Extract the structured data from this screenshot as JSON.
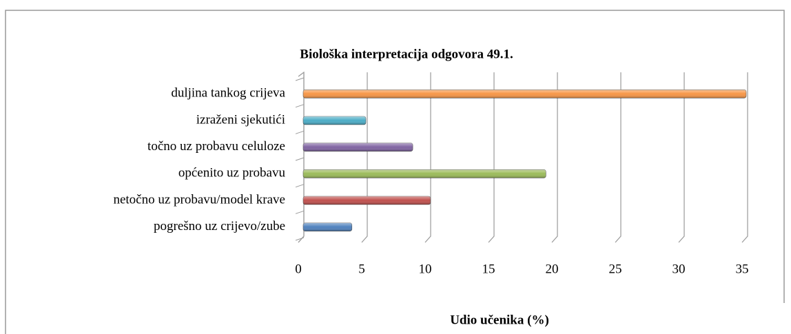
{
  "chart_data": {
    "type": "barh",
    "title": "Biološka interpretacija odgovora 49.1.",
    "x_label": "Udio učenika (%)",
    "categories": [
      "duljina tankog crijeva",
      "izraženi sjekutići",
      "točno uz probavu celuloze",
      "općenito uz probavu",
      "netočno uz probavu/model krave",
      "pogrešno uz crijevo/zube"
    ],
    "values": [
      35,
      5,
      8.7,
      19.2,
      10.1,
      3.9
    ],
    "colors": [
      "#f79646",
      "#4bacc6",
      "#8064a2",
      "#9bbb59",
      "#c0504d",
      "#4f81bd"
    ],
    "xlim": [
      0,
      35
    ],
    "xticks": [
      0,
      5,
      10,
      15,
      20,
      25,
      30,
      35
    ],
    "grid": true
  }
}
